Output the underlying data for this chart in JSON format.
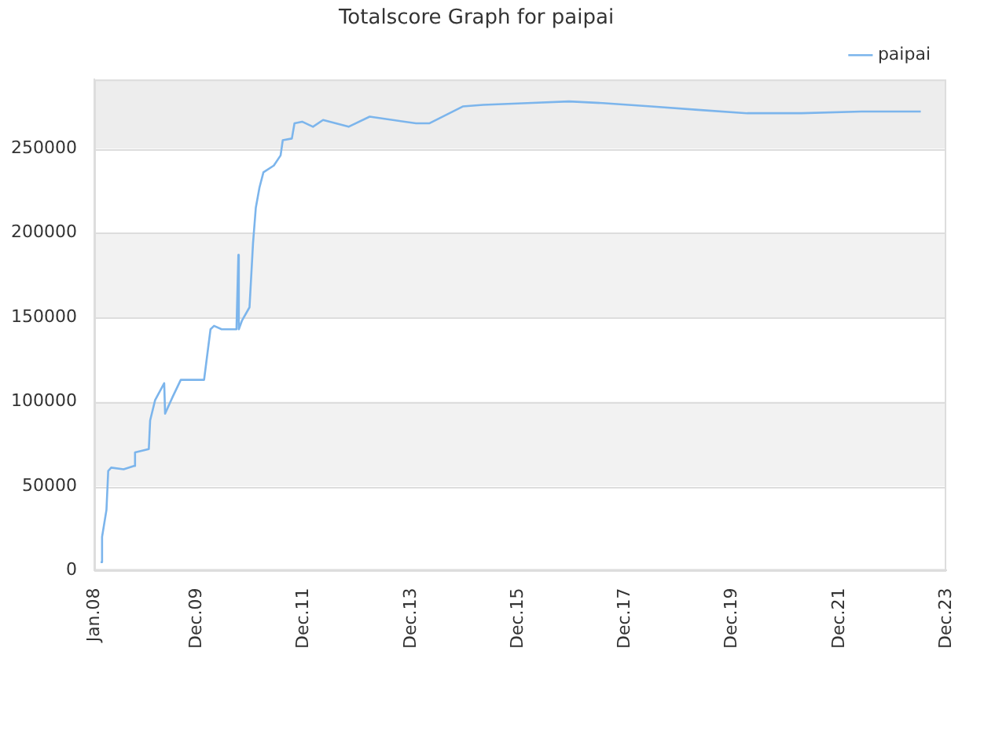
{
  "chart_data": {
    "type": "line",
    "title": "Totalscore Graph for paipai",
    "x": [
      "2008-02-13",
      "2008-02-23",
      "2008-03-24",
      "2008-04-05",
      "2008-04-25",
      "2008-07-19",
      "2008-09-28",
      "2008-10-05",
      "2009-01-07",
      "2009-01-16",
      "2009-02-19",
      "2009-04-22",
      "2009-04-28",
      "2009-06-19",
      "2009-08-13",
      "2010-01-19",
      "2010-02-07",
      "2010-03-04",
      "2010-03-28",
      "2010-05-19",
      "2010-08-28",
      "2010-09-10",
      "2010-09-13",
      "2010-10-04",
      "2010-11-25",
      "2010-12-19",
      "2011-01-07",
      "2011-02-01",
      "2011-02-28",
      "2011-05-10",
      "2011-06-25",
      "2011-07-10",
      "2011-09-10",
      "2011-09-28",
      "2011-11-19",
      "2012-02-01",
      "2012-04-10",
      "2012-10-01",
      "2013-02-22",
      "2014-01-04",
      "2014-04-04",
      "2014-11-19",
      "2015-04-07",
      "2016-02-04",
      "2016-11-13",
      "2017-07-01",
      "2018-05-28",
      "2019-04-13",
      "2020-03-13",
      "2021-03-19",
      "2022-05-01",
      "2023-06-10"
    ],
    "series": [
      {
        "name": "paipai",
        "color": "#7cb5ec",
        "values": [
          5000,
          20000,
          36000,
          59000,
          61000,
          60000,
          62000,
          70000,
          72000,
          89000,
          101000,
          111000,
          93000,
          103000,
          113000,
          113000,
          126000,
          143000,
          145000,
          143000,
          143000,
          187000,
          143000,
          148000,
          156000,
          194000,
          215000,
          227000,
          236000,
          240000,
          246000,
          255000,
          256000,
          265000,
          266000,
          263000,
          267000,
          263000,
          269000,
          265000,
          265000,
          275000,
          276000,
          277000,
          278000,
          277000,
          275000,
          273000,
          271000,
          271000,
          272000,
          272000
        ]
      }
    ],
    "xlim": [
      "2008-01",
      "2023-12"
    ],
    "xticks": [
      {
        "value": "2008-01",
        "label": "Jan.08"
      },
      {
        "value": "2009-12",
        "label": "Dec.09"
      },
      {
        "value": "2011-12",
        "label": "Dec.11"
      },
      {
        "value": "2013-12",
        "label": "Dec.13"
      },
      {
        "value": "2015-12",
        "label": "Dec.15"
      },
      {
        "value": "2017-12",
        "label": "Dec.17"
      },
      {
        "value": "2019-12",
        "label": "Dec.19"
      },
      {
        "value": "2021-12",
        "label": "Dec.21"
      },
      {
        "value": "2023-12",
        "label": "Dec.23"
      }
    ],
    "ylim": [
      0,
      291000
    ],
    "yticks": [
      0,
      50000,
      100000,
      150000,
      200000,
      250000
    ],
    "bands": [
      {
        "axis": "y",
        "from": 50000,
        "to": 100000,
        "color": "#f2f2f2"
      },
      {
        "axis": "y",
        "from": 150000,
        "to": 200000,
        "color": "#f2f2f2"
      },
      {
        "axis": "y",
        "from": 250000,
        "to": 291000,
        "color": "#ededed"
      }
    ],
    "grid": "y",
    "legend": "top right",
    "marker": "none",
    "line_style": "solid"
  }
}
